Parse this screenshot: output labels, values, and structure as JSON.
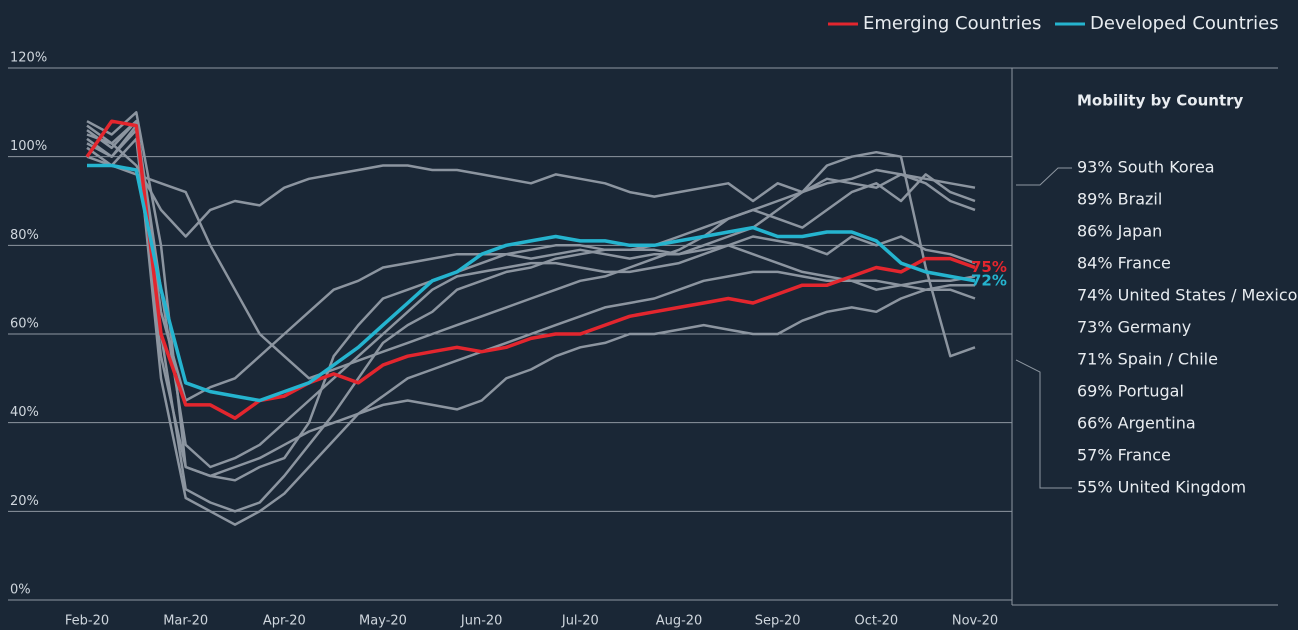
{
  "chart_data": {
    "type": "line",
    "categories": [
      "Feb-20",
      null,
      null,
      null,
      "Mar-20",
      null,
      null,
      null,
      "Apr-20",
      null,
      null,
      null,
      "May-20",
      null,
      null,
      null,
      "Jun-20",
      null,
      null,
      null,
      "Jul-20",
      null,
      null,
      null,
      "Aug-20",
      null,
      null,
      null,
      "Sep-20",
      null,
      null,
      null,
      "Oct-20",
      null,
      null,
      null,
      "Nov-20"
    ],
    "ylim": [
      0,
      120
    ],
    "yticks": [
      {
        "value": 0,
        "label": "0%"
      },
      {
        "value": 20,
        "label": "20%"
      },
      {
        "value": 40,
        "label": "40%"
      },
      {
        "value": 60,
        "label": "60%"
      },
      {
        "value": 80,
        "label": "80%"
      },
      {
        "value": 100,
        "label": "100%"
      },
      {
        "value": 120,
        "label": "120%"
      }
    ],
    "grid": true,
    "legend": "top-right",
    "panel_title": "Mobility by Country",
    "country_labels": [
      "93% South Korea",
      "89% Brazil",
      "86% Japan",
      "84% France",
      "74% United States / Mexico",
      "73% Germany",
      "71% Spain / Chile",
      "69% Portugal",
      "66% Argentina",
      "57% France",
      "55% United Kingdom"
    ],
    "background_series": [
      {
        "color": "#8c95a0",
        "values": [
          107,
          103,
          98,
          88,
          82,
          88,
          90,
          89,
          93,
          95,
          96,
          97,
          98,
          98,
          97,
          97,
          96,
          95,
          94,
          96,
          95,
          94,
          92,
          91,
          92,
          93,
          94,
          90,
          94,
          92,
          95,
          94,
          93,
          96,
          95,
          94,
          93
        ]
      },
      {
        "color": "#8c95a0",
        "values": [
          108,
          105,
          110,
          80,
          30,
          28,
          27,
          30,
          32,
          40,
          55,
          62,
          68,
          70,
          72,
          74,
          76,
          78,
          79,
          80,
          80,
          79,
          79,
          80,
          82,
          84,
          86,
          88,
          90,
          92,
          94,
          95,
          97,
          96,
          94,
          90,
          88
        ]
      },
      {
        "color": "#8c95a0",
        "values": [
          105,
          103,
          108,
          60,
          25,
          22,
          20,
          22,
          28,
          35,
          42,
          50,
          58,
          62,
          65,
          70,
          72,
          74,
          75,
          77,
          78,
          79,
          79,
          79,
          78,
          80,
          82,
          84,
          88,
          92,
          98,
          100,
          101,
          100,
          75,
          55,
          57
        ]
      },
      {
        "color": "#8c95a0",
        "values": [
          103,
          100,
          106,
          50,
          23,
          20,
          17,
          20,
          24,
          30,
          36,
          42,
          46,
          50,
          52,
          54,
          56,
          58,
          60,
          62,
          64,
          66,
          67,
          68,
          70,
          72,
          73,
          74,
          74,
          73,
          72,
          72,
          70,
          71,
          70,
          71,
          71
        ]
      },
      {
        "color": "#8c95a0",
        "values": [
          100,
          98,
          104,
          55,
          30,
          28,
          30,
          32,
          35,
          38,
          40,
          42,
          44,
          45,
          44,
          43,
          45,
          50,
          52,
          55,
          57,
          58,
          60,
          60,
          61,
          62,
          61,
          60,
          60,
          63,
          65,
          66,
          65,
          68,
          70,
          70,
          68
        ]
      },
      {
        "color": "#8c95a0",
        "values": [
          106,
          102,
          108,
          70,
          35,
          30,
          32,
          35,
          40,
          45,
          50,
          55,
          60,
          65,
          70,
          73,
          74,
          75,
          76,
          76,
          75,
          74,
          74,
          75,
          76,
          78,
          80,
          78,
          76,
          74,
          73,
          72,
          72,
          71,
          72,
          72,
          73
        ]
      },
      {
        "color": "#8c95a0",
        "values": [
          104,
          100,
          107,
          65,
          45,
          48,
          50,
          55,
          60,
          65,
          70,
          72,
          75,
          76,
          77,
          78,
          78,
          78,
          77,
          78,
          79,
          78,
          77,
          78,
          78,
          79,
          80,
          82,
          81,
          80,
          78,
          82,
          80,
          82,
          79,
          78,
          76
        ]
      },
      {
        "color": "#8c95a0",
        "values": [
          102,
          98,
          96,
          94,
          92,
          80,
          70,
          60,
          55,
          50,
          52,
          54,
          56,
          58,
          60,
          62,
          64,
          66,
          68,
          70,
          72,
          73,
          75,
          77,
          79,
          82,
          86,
          88,
          86,
          84,
          88,
          92,
          94,
          90,
          96,
          92,
          90
        ]
      }
    ],
    "series": [
      {
        "name": "Emerging Countries",
        "color": "#e3262e",
        "values": [
          100,
          108,
          107,
          60,
          44,
          44,
          41,
          45,
          46,
          49,
          51,
          49,
          53,
          55,
          56,
          57,
          56,
          57,
          59,
          60,
          60,
          62,
          64,
          65,
          66,
          67,
          68,
          67,
          69,
          71,
          71,
          73,
          75,
          74,
          77,
          77,
          75
        ],
        "value_labels": [
          null,
          null,
          null,
          null,
          null,
          null,
          null,
          null,
          null,
          null,
          null,
          null,
          null,
          null,
          null,
          null,
          null,
          null,
          null,
          null,
          null,
          null,
          null,
          null,
          null,
          null,
          null,
          null,
          null,
          null,
          null,
          null,
          null,
          null,
          null,
          null,
          "75%"
        ]
      },
      {
        "name": "Developed Countries",
        "color": "#25b4cf",
        "values": [
          98,
          98,
          97,
          70,
          49,
          47,
          46,
          45,
          47,
          49,
          53,
          57,
          62,
          67,
          72,
          74,
          78,
          80,
          81,
          82,
          81,
          81,
          80,
          80,
          81,
          82,
          83,
          84,
          82,
          82,
          83,
          83,
          81,
          76,
          74,
          73,
          72
        ],
        "value_labels": [
          null,
          null,
          null,
          null,
          null,
          null,
          null,
          null,
          null,
          null,
          null,
          null,
          null,
          null,
          null,
          null,
          null,
          null,
          null,
          null,
          null,
          null,
          null,
          null,
          null,
          null,
          null,
          null,
          null,
          null,
          null,
          null,
          null,
          null,
          null,
          null,
          "72%"
        ]
      }
    ]
  }
}
